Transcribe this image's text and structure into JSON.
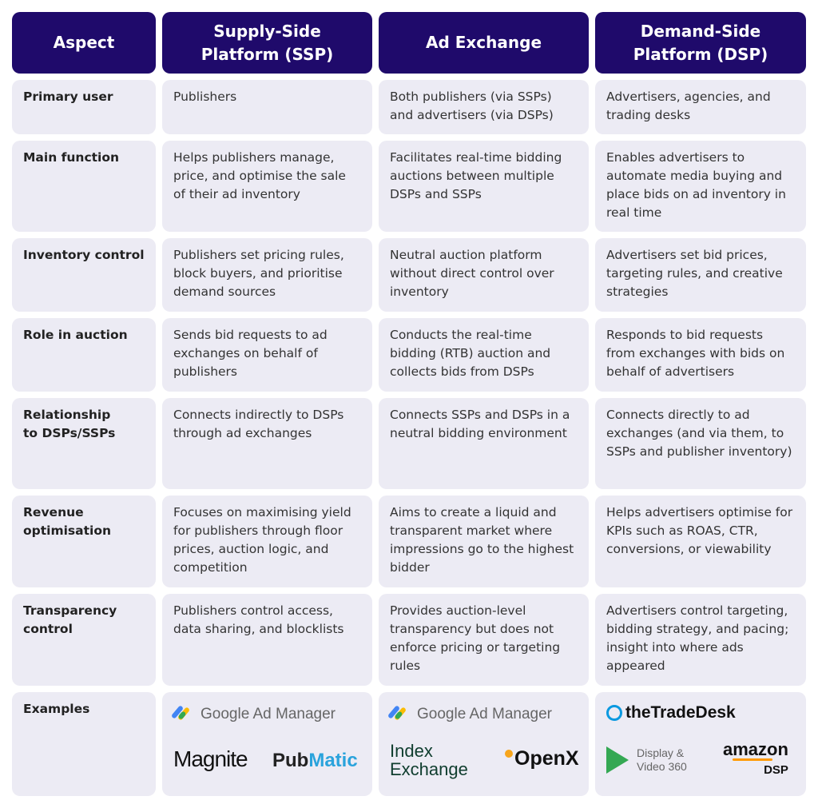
{
  "headers": [
    "Aspect",
    "Supply-Side\nPlatform (SSP)",
    "Ad Exchange",
    "Demand-Side\nPlatform (DSP)"
  ],
  "rows": [
    {
      "aspect": "Primary user",
      "ssp": "Publishers",
      "adx": "Both publishers (via SSPs) and advertisers (via DSPs)",
      "dsp": "Advertisers, agencies, and trading desks"
    },
    {
      "aspect": "Main function",
      "ssp": "Helps publishers manage, price, and optimise the sale of their ad inventory",
      "adx": "Facilitates real-time bidding auctions between multiple DSPs and SSPs",
      "dsp": "Enables advertisers to automate media buying and place bids on ad inventory in real time"
    },
    {
      "aspect": "Inventory control",
      "ssp": "Publishers set pricing rules, block buyers, and prioritise demand sources",
      "adx": "Neutral auction platform without direct control over inventory",
      "dsp": "Advertisers set bid prices, targeting rules, and creative strategies"
    },
    {
      "aspect": "Role in auction",
      "ssp": "Sends bid requests to ad exchanges on behalf of publishers",
      "adx": "Conducts the real-time bidding (RTB) auction and collects bids from DSPs",
      "dsp": "Responds to bid requests from exchanges with bids on behalf of advertisers"
    },
    {
      "aspect": "Relationship\nto DSPs/SSPs",
      "ssp": "Connects indirectly to DSPs through ad exchanges",
      "adx": "Connects SSPs and DSPs in a neutral bidding environment",
      "dsp": "Connects directly to ad exchanges (and via them, to SSPs and publisher inventory)"
    },
    {
      "aspect": "Revenue\noptimisation",
      "ssp": "Focuses on maximising yield for publishers through floor prices, auction logic, and competition",
      "adx": "Aims to create a liquid and transparent market where impressions go to the highest bidder",
      "dsp": "Helps advertisers optimise for KPIs such as ROAS, CTR, conversions, or viewability"
    },
    {
      "aspect": "Transparency\ncontrol",
      "ssp": "Publishers control access, data sharing, and blocklists",
      "adx": "Provides auction-level transparency but does not enforce pricing or targeting rules",
      "dsp": "Advertisers control targeting, bidding strategy, and pacing; insight into where ads appeared"
    }
  ],
  "examples": {
    "aspect": "Examples",
    "ssp": [
      "Google Ad Manager",
      "Magnite",
      "Pub",
      "Matic"
    ],
    "adx": [
      "Google Ad Manager",
      "Index",
      "Exchange",
      "OpenX"
    ],
    "dsp": [
      "theTradeDesk",
      "Display &",
      "Video 360",
      "amazon",
      "DSP"
    ]
  },
  "colors": {
    "header": "#1f0a6b",
    "cell": "#ecebf4",
    "pubmatic": "#2aa3dc",
    "tradedesk": "#0a99e0",
    "amazon": "#ff9900"
  }
}
